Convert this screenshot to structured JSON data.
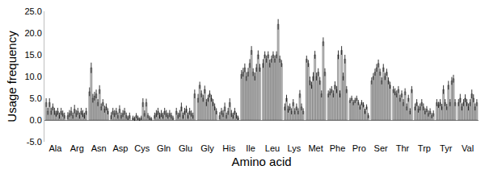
{
  "chart_data": {
    "type": "bar",
    "x_label": "Amino acid",
    "y_label": "Usage frequency",
    "categories": [
      "Ala",
      "Arg",
      "Asn",
      "Asp",
      "Cys",
      "Gln",
      "Glu",
      "Gly",
      "His",
      "Ile",
      "Leu",
      "Lys",
      "Met",
      "Phe",
      "Pro",
      "Ser",
      "Thr",
      "Trp",
      "Tyr",
      "Val"
    ],
    "color": "#bfbfbf",
    "grid": false,
    "ylim": [
      -5,
      25
    ],
    "yticks": [
      {
        "value": -5,
        "label": "-5.0"
      },
      {
        "value": 0,
        "label": "0.0"
      },
      {
        "value": 5,
        "label": "5.0"
      },
      {
        "value": 10,
        "label": "10.0"
      },
      {
        "value": 15,
        "label": "15.0"
      },
      {
        "value": 20,
        "label": "20.0"
      },
      {
        "value": 25,
        "label": "25.0"
      }
    ],
    "series": [
      {
        "values": [
          4,
          1,
          6.5,
          1,
          0.5,
          1,
          2,
          5,
          1,
          10.5,
          13,
          3,
          14,
          6,
          4.5,
          9,
          7,
          3,
          4,
          4
        ],
        "errors": [
          1,
          0.8,
          1,
          0.8,
          0.5,
          0.7,
          0.8,
          1,
          0.8,
          1,
          1,
          0.8,
          0.8,
          0.8,
          0.6,
          0.8,
          0.8,
          0.8,
          0.8,
          0.8
        ]
      },
      {
        "values": [
          2,
          1.5,
          12,
          2,
          0.3,
          1.5,
          1,
          8,
          2,
          11,
          15,
          5,
          13,
          6.5,
          5,
          10,
          6.5,
          4,
          3.5,
          5
        ],
        "errors": [
          0.8,
          0.8,
          1.2,
          0.8,
          0.5,
          0.8,
          0.7,
          0.8,
          0.8,
          1,
          0.8,
          0.8,
          0.8,
          0.8,
          0.6,
          0.8,
          0.8,
          0.8,
          0.7,
          1
        ]
      },
      {
        "values": [
          4,
          2,
          5,
          1.5,
          1,
          2,
          1.5,
          6,
          1.5,
          12,
          14,
          2.5,
          9,
          7,
          4,
          11,
          6,
          2.5,
          4,
          3
        ],
        "errors": [
          1,
          1,
          1,
          0.8,
          0.6,
          0.8,
          0.8,
          0.8,
          0.8,
          1,
          0.8,
          0.8,
          1,
          0.8,
          0.6,
          0.8,
          0.8,
          0.8,
          0.8,
          0.8
        ]
      },
      {
        "values": [
          2,
          1,
          5.5,
          2,
          0.5,
          1,
          3,
          5,
          3,
          10,
          15,
          3,
          8,
          6,
          4.5,
          12,
          7,
          3,
          3,
          4
        ],
        "errors": [
          0.8,
          0.7,
          1,
          0.8,
          0.5,
          0.7,
          1,
          0.8,
          1,
          1,
          0.8,
          0.8,
          0.8,
          0.8,
          0.6,
          0.9,
          0.8,
          0.8,
          0.7,
          0.8
        ]
      },
      {
        "values": [
          3,
          2.5,
          6,
          1,
          0.2,
          1.5,
          1,
          7,
          1,
          11,
          13,
          2,
          10,
          8,
          5,
          13,
          5,
          4,
          7,
          5
        ],
        "errors": [
          0.8,
          1,
          1,
          0.7,
          0.4,
          0.8,
          0.7,
          0.9,
          0.7,
          1,
          0.9,
          0.7,
          1,
          0.9,
          0.6,
          0.9,
          0.8,
          0.8,
          1,
          0.9
        ]
      },
      {
        "values": [
          2,
          1.5,
          4,
          2.5,
          0.5,
          1,
          2,
          4,
          2,
          13,
          14,
          4,
          15,
          7,
          4,
          11,
          6,
          3,
          4,
          4
        ],
        "errors": [
          0.8,
          0.8,
          0.8,
          0.9,
          0.5,
          0.7,
          0.8,
          0.8,
          0.8,
          1,
          0.8,
          0.8,
          0.9,
          0.8,
          0.6,
          0.8,
          0.8,
          0.8,
          0.8,
          0.8
        ]
      },
      {
        "values": [
          1.5,
          2,
          7,
          1,
          4,
          2,
          2.5,
          5,
          4,
          16,
          15,
          2,
          10,
          15,
          3,
          9,
          4,
          2,
          3,
          3
        ],
        "errors": [
          0.7,
          0.8,
          1,
          0.7,
          1,
          0.8,
          0.8,
          0.8,
          1,
          1,
          0.8,
          0.7,
          0.9,
          1,
          0.6,
          0.8,
          0.8,
          0.7,
          0.7,
          0.8
        ]
      },
      {
        "values": [
          2,
          1,
          3,
          1.5,
          1.5,
          1.5,
          1,
          6,
          1.5,
          11,
          14,
          3,
          11,
          6,
          4,
          12,
          6.5,
          2.5,
          8,
          4
        ],
        "errors": [
          0.8,
          0.7,
          0.8,
          0.8,
          0.7,
          0.8,
          0.7,
          0.8,
          0.8,
          0.9,
          0.8,
          0.8,
          0.9,
          0.8,
          0.6,
          0.9,
          0.8,
          0.7,
          1,
          0.8
        ]
      },
      {
        "values": [
          1,
          2,
          4,
          2,
          4,
          1,
          2,
          5,
          1,
          10,
          15,
          2,
          9,
          16,
          3.5,
          10,
          3,
          1.5,
          4,
          6
        ],
        "errors": [
          0.7,
          0.8,
          0.8,
          0.8,
          0.9,
          0.7,
          0.8,
          0.8,
          0.7,
          0.9,
          0.8,
          0.7,
          0.9,
          1,
          0.6,
          0.8,
          0.8,
          0.7,
          0.8,
          1
        ]
      },
      {
        "values": [
          2,
          1.5,
          2.5,
          1,
          1,
          1.5,
          1.5,
          4,
          2,
          12,
          22,
          6,
          6,
          10,
          2,
          11,
          5,
          2,
          9,
          5
        ],
        "errors": [
          0.8,
          0.8,
          0.8,
          0.7,
          0.6,
          0.8,
          0.7,
          0.8,
          0.8,
          0.9,
          1.2,
          0.9,
          0.8,
          0.9,
          0.6,
          0.8,
          0.8,
          0.7,
          0.9,
          0.9
        ]
      },
      {
        "values": [
          1.5,
          1,
          3,
          0.5,
          0.5,
          1,
          1,
          3,
          1,
          15,
          14,
          3,
          18,
          14,
          3,
          9,
          2,
          1,
          9.5,
          3
        ],
        "errors": [
          0.7,
          0.7,
          0.8,
          0.5,
          0.5,
          0.7,
          0.7,
          0.8,
          0.7,
          1,
          0.8,
          0.8,
          1,
          1,
          0.6,
          0.8,
          0.7,
          0.6,
          0.9,
          0.8
        ]
      },
      {
        "values": [
          1,
          2,
          2,
          1,
          0.3,
          0.5,
          6,
          2,
          0.5,
          12,
          13,
          2,
          11,
          7,
          1,
          8,
          7,
          1.5,
          4,
          4
        ],
        "errors": [
          0.7,
          0.8,
          0.7,
          0.7,
          0.4,
          0.5,
          1,
          0.7,
          0.5,
          0.9,
          0.8,
          0.7,
          0.9,
          0.8,
          0.6,
          0.8,
          0.8,
          0.7,
          0.8,
          0.8
        ]
      }
    ]
  }
}
